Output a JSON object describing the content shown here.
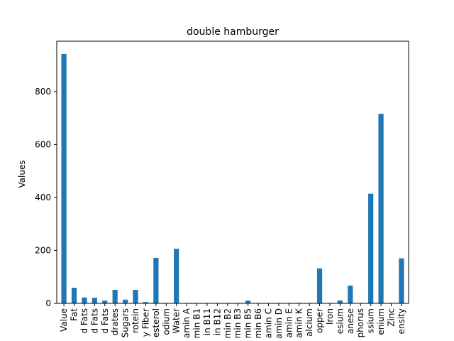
{
  "chart_data": {
    "type": "bar",
    "title": "double hamburger",
    "xlabel": "",
    "ylabel": "Values",
    "ylim": [
      0,
      990
    ],
    "yticks": [
      0,
      200,
      400,
      600,
      800
    ],
    "grid": false,
    "legend": "none",
    "colors": {
      "bar": "#1f77b4",
      "axis": "#000000",
      "background": "#ffffff"
    },
    "categories": [
      "Value",
      "Fat",
      "d Fats",
      "d Fats",
      "d Fats",
      "drates",
      "Sugars",
      "rotein",
      "y Fiber",
      "esterol",
      "odium",
      "Water",
      "amin A",
      "min B1",
      "in B11",
      "in B12",
      "min B2",
      "min B3",
      "min B5",
      "min B6",
      "amin C",
      "amin D",
      "amin E",
      "amin K",
      "alcium",
      "opper",
      "Iron",
      "esium",
      "anese",
      "phorus",
      "ssium",
      "enium",
      "Zinc",
      "ensity"
    ],
    "values": [
      942,
      59,
      22,
      21,
      10,
      51,
      14,
      51,
      5,
      172,
      0.8,
      206,
      0.5,
      0.3,
      0.2,
      0.2,
      0.3,
      0.4,
      10,
      0.5,
      0.3,
      0.2,
      0.5,
      2,
      0.5,
      132,
      1,
      11,
      67,
      0.5,
      414,
      716,
      0.5,
      170
    ]
  }
}
